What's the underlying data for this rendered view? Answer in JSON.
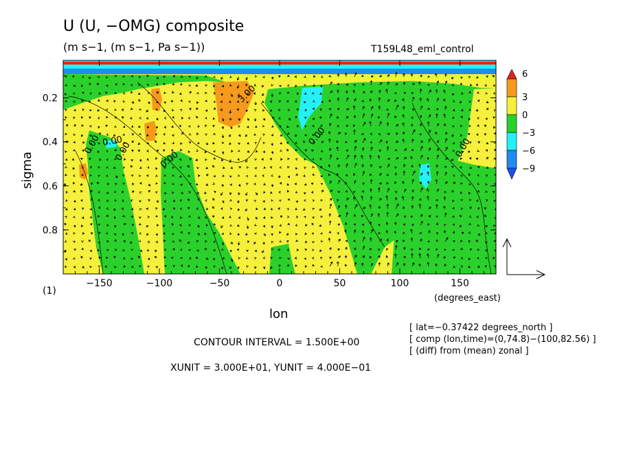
{
  "header": {
    "title": "U (U, −OMG) composite",
    "subtitle": "(m s−1, (m s−1, Pa s−1))",
    "run_label": "T159L48_eml_control"
  },
  "chart_data": {
    "type": "heatmap",
    "xlabel": "lon",
    "ylabel": "sigma",
    "x_unit_label": "(degrees_east)",
    "corner_label": "(1)",
    "xlim": [
      -180,
      180
    ],
    "ylim": [
      1.0,
      0.03
    ],
    "xticks": [
      -150,
      -100,
      -50,
      0,
      50,
      100,
      150
    ],
    "yticks": [
      0.2,
      0.4,
      0.6,
      0.8
    ],
    "colorbar": {
      "levels": [
        6,
        3,
        0,
        -3,
        -6,
        -9
      ],
      "colors": [
        "#e8201a",
        "#f59a1c",
        "#f5f03c",
        "#2bd12b",
        "#25f0f5",
        "#1e8cf0",
        "#1a50f0"
      ]
    },
    "contour_labels": [
      "0.00",
      "0.00",
      "0.00",
      "0.00",
      "0.00",
      "0.00",
      "3.00"
    ],
    "info": {
      "contour_interval": "CONTOUR INTERVAL = 1.500E+00",
      "units": "XUNIT = 3.000E+01, YUNIT = 4.000E−01",
      "lat": "[ lat=−0.37422 degrees_north ]",
      "comp": "[ comp (lon,time)=(0,74.8)−(100,82.56) ]",
      "diff": "[ (diff) from (mean) zonal ]"
    }
  }
}
